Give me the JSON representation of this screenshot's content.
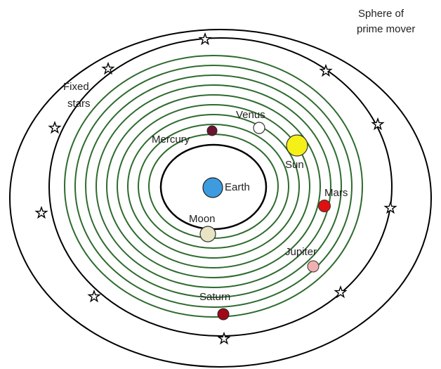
{
  "colors": {
    "outline": "#000000",
    "orbit": "#2e6b2e",
    "earth": "#3d9be0",
    "moon": "#e8e4c4",
    "mercury": "#6b1432",
    "venus": "#ffffff",
    "sun": "#f6f019",
    "mars": "#e01010",
    "jupiter": "#f0b0b0",
    "saturn": "#a00818",
    "star": "#ffffff"
  },
  "labels": {
    "prime_mover_line1": "Sphere of",
    "prime_mover_line2": "prime mover",
    "fixed_stars_line1": "Fixed",
    "fixed_stars_line2": "stars",
    "venus": "Venus",
    "mercury": "Mercury",
    "sun": "Sun",
    "earth": "Earth",
    "mars": "Mars",
    "moon": "Moon",
    "jupiter": "Jupiter",
    "saturn": "Saturn"
  },
  "icons": {
    "star": "star-icon",
    "earth": "earth-icon",
    "moon": "moon-icon",
    "mercury": "mercury-icon",
    "venus": "venus-icon",
    "sun": "sun-icon",
    "mars": "mars-icon",
    "jupiter": "jupiter-icon",
    "saturn": "saturn-icon"
  }
}
